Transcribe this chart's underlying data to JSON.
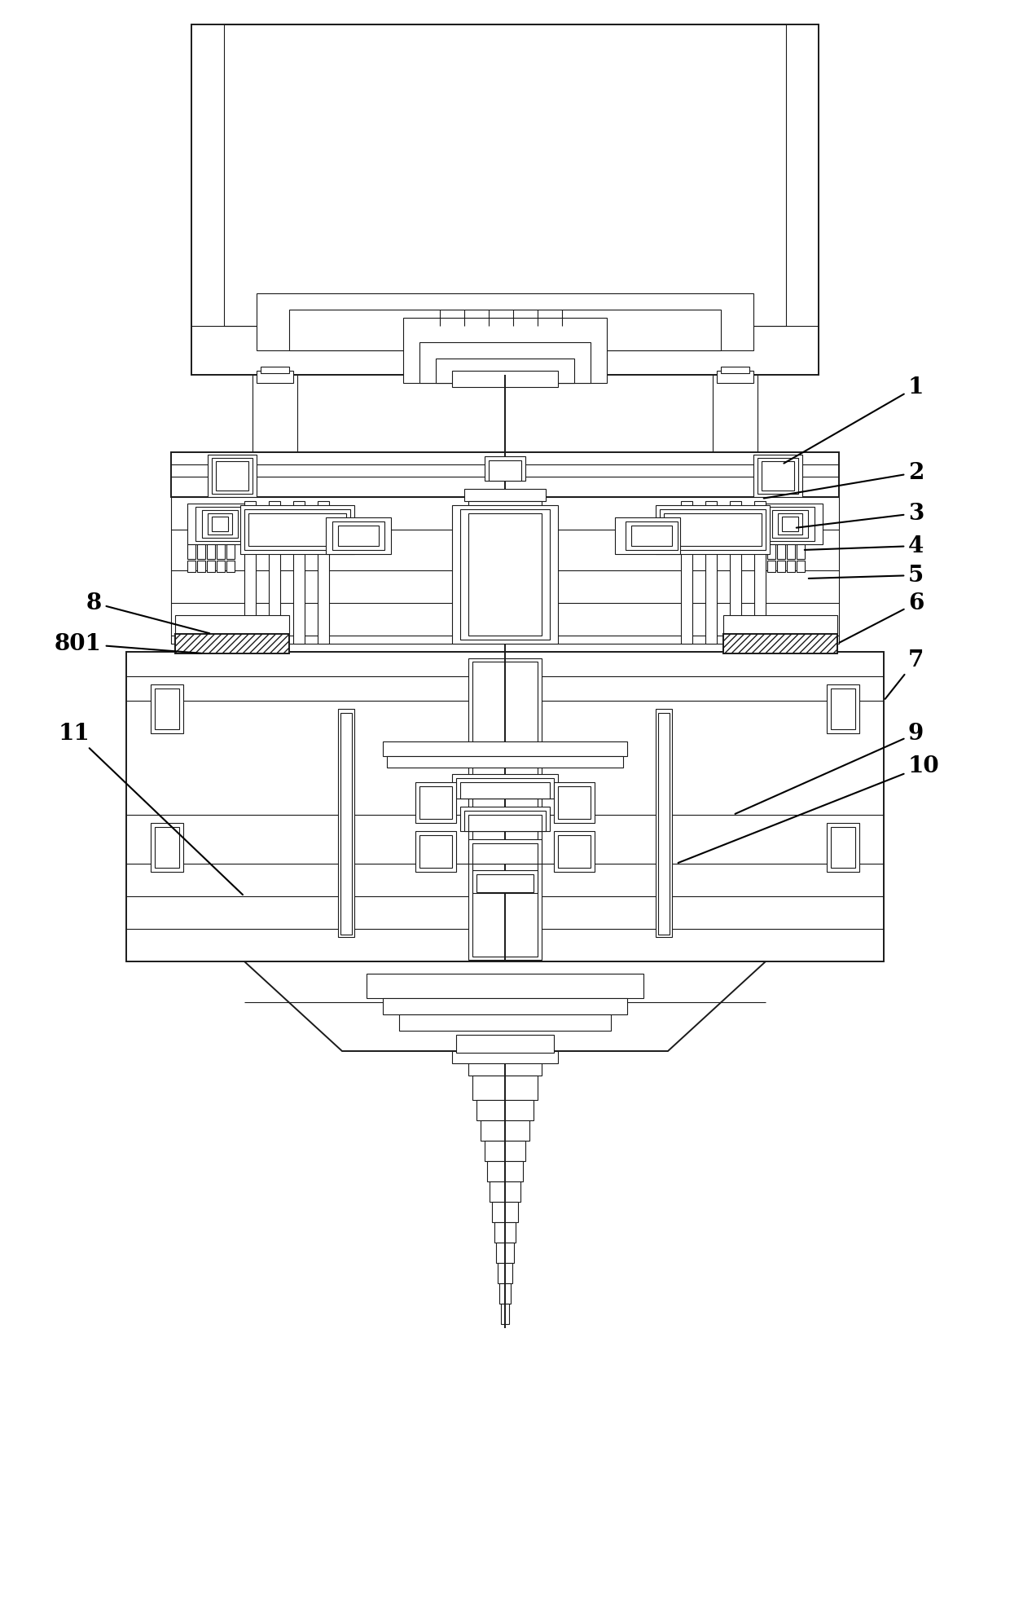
{
  "bg_color": "#ffffff",
  "line_color": "#1a1a1a",
  "lw": 0.8,
  "lw2": 1.4,
  "lw3": 2.0,
  "fig_width": 12.4,
  "fig_height": 19.6,
  "dpi": 100,
  "label_fontsize": 20,
  "label_color": "#000000",
  "coord_system": {
    "xmin": 0,
    "xmax": 1240,
    "ymin": 0,
    "ymax": 1960
  }
}
